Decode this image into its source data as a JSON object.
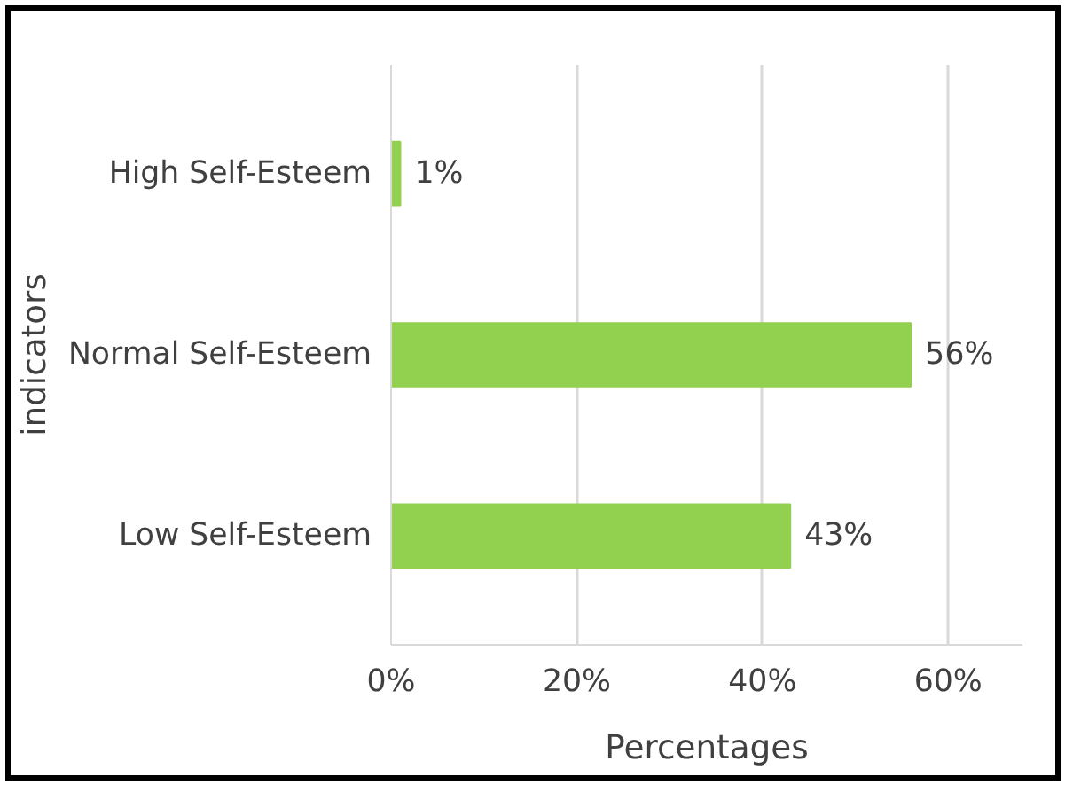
{
  "chart_data": {
    "type": "bar",
    "orientation": "horizontal",
    "categories": [
      "High Self-Esteem",
      "Normal Self-Esteem",
      "Low Self-Esteem"
    ],
    "values": [
      1,
      56,
      43
    ],
    "color": "#92d050",
    "value_labels": [
      "1%",
      "56%",
      "43%"
    ],
    "xlim": [
      0,
      68
    ],
    "xticks": [
      {
        "value": 0,
        "label": "0%"
      },
      {
        "value": 20,
        "label": "20%"
      },
      {
        "value": 40,
        "label": "40%"
      },
      {
        "value": 60,
        "label": "60%"
      }
    ],
    "xlabel": "Percentages",
    "ylabel": "indicators",
    "grid": "x"
  }
}
